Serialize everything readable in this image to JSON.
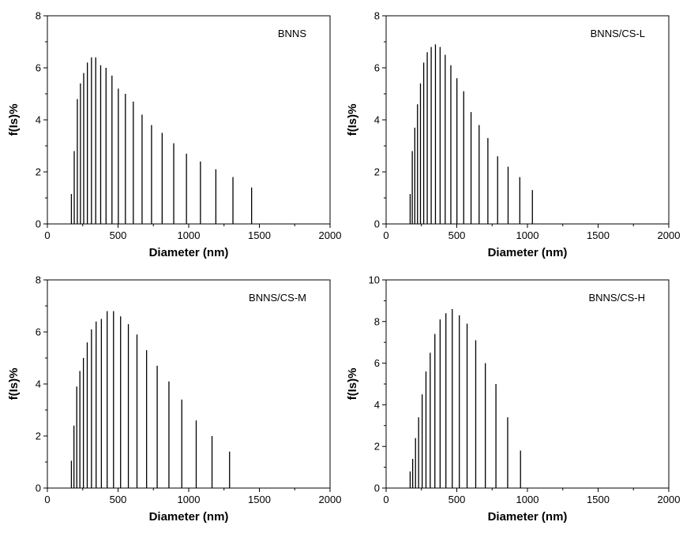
{
  "chart_data": [
    {
      "type": "bar",
      "title": "BNNS",
      "xlabel": "Diameter (nm)",
      "ylabel": "f(Is)%",
      "xlim": [
        0,
        2000
      ],
      "ylim": [
        0,
        8
      ],
      "xticks": [
        "0",
        "500",
        "1000",
        "1500",
        "2000"
      ],
      "yticks": [
        "0",
        "2",
        "4",
        "6",
        "8"
      ],
      "x": [
        170,
        190,
        212,
        234,
        257,
        283,
        312,
        342,
        377,
        415,
        457,
        502,
        552,
        608,
        670,
        737,
        812,
        894,
        984,
        1083,
        1192,
        1313,
        1445,
        1591,
        1752
      ],
      "values": [
        1.15,
        2.8,
        4.8,
        5.4,
        5.8,
        6.2,
        6.4,
        6.4,
        6.1,
        6.0,
        5.7,
        5.2,
        5.0,
        4.7,
        4.2,
        3.8,
        3.5,
        3.1,
        2.7,
        2.4,
        2.1,
        1.8,
        1.4,
        0,
        0
      ]
    },
    {
      "type": "bar",
      "title": "BNNS/CS-L",
      "xlabel": "Diameter (nm)",
      "ylabel": "f(Is)%",
      "xlim": [
        0,
        2000
      ],
      "ylim": [
        0,
        8
      ],
      "xticks": [
        "0",
        "500",
        "1000",
        "1500",
        "2000"
      ],
      "yticks": [
        "0",
        "2",
        "4",
        "6",
        "8"
      ],
      "x": [
        170,
        185,
        203,
        222,
        243,
        266,
        291,
        319,
        349,
        382,
        418,
        458,
        501,
        549,
        601,
        658,
        720,
        789,
        863,
        946,
        1035,
        1133,
        1241,
        1358
      ],
      "values": [
        1.15,
        2.8,
        3.7,
        4.6,
        5.4,
        6.2,
        6.6,
        6.8,
        6.9,
        6.8,
        6.5,
        6.1,
        5.6,
        5.1,
        4.3,
        3.8,
        3.3,
        2.6,
        2.2,
        1.8,
        1.3,
        0,
        0,
        0
      ]
    },
    {
      "type": "bar",
      "title": "BNNS/CS-M",
      "xlabel": "Diameter (nm)",
      "ylabel": "f(Is)%",
      "xlim": [
        0,
        2000
      ],
      "ylim": [
        0,
        8
      ],
      "xticks": [
        "0",
        "500",
        "1000",
        "1500",
        "2000"
      ],
      "yticks": [
        "0",
        "2",
        "4",
        "6",
        "8"
      ],
      "x": [
        170,
        188,
        208,
        230,
        255,
        282,
        312,
        345,
        382,
        423,
        468,
        518,
        573,
        634,
        702,
        777,
        860,
        951,
        1053,
        1165,
        1289,
        1426
      ],
      "values": [
        1.05,
        2.4,
        3.9,
        4.5,
        5.0,
        5.6,
        6.1,
        6.4,
        6.5,
        6.8,
        6.8,
        6.6,
        6.3,
        5.9,
        5.3,
        4.7,
        4.1,
        3.4,
        2.6,
        2.0,
        1.4,
        0
      ]
    },
    {
      "type": "bar",
      "title": "BNNS/CS-H",
      "xlabel": "Diameter (nm)",
      "ylabel": "f(Is)%",
      "xlim": [
        0,
        2000
      ],
      "ylim": [
        0,
        10
      ],
      "xticks": [
        "0",
        "500",
        "1000",
        "1500",
        "2000"
      ],
      "yticks": [
        "0",
        "2",
        "4",
        "6",
        "8",
        "10"
      ],
      "x": [
        170,
        188,
        208,
        230,
        255,
        282,
        312,
        345,
        382,
        423,
        468,
        518,
        573,
        634,
        702,
        777,
        860,
        951,
        1053
      ],
      "values": [
        0.8,
        1.4,
        2.4,
        3.4,
        4.5,
        5.6,
        6.5,
        7.4,
        8.1,
        8.4,
        8.6,
        8.3,
        7.9,
        7.1,
        6.0,
        5.0,
        3.4,
        1.8,
        0
      ]
    }
  ]
}
